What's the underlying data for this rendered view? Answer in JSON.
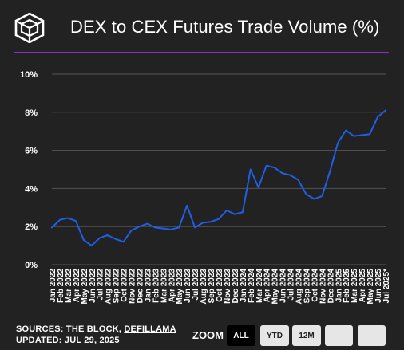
{
  "header": {
    "title": "DEX to CEX Futures Trade Volume (%)",
    "logo_icon": "cube-logo-icon"
  },
  "colors": {
    "background": "#222222",
    "line": "#1f5fe6",
    "grid": "#555555",
    "accent_divider": "#8a2ec8",
    "text": "#ffffff"
  },
  "chart_data": {
    "type": "line",
    "title": "DEX to CEX Futures Trade Volume (%)",
    "xlabel": "",
    "ylabel": "",
    "ylim": [
      0,
      10
    ],
    "y_ticks": [
      0,
      2,
      4,
      6,
      8,
      10
    ],
    "y_tick_labels": [
      "0%",
      "2%",
      "4%",
      "6%",
      "8%",
      "10%"
    ],
    "grid": true,
    "legend": "none",
    "categories": [
      "Jan 2022",
      "Feb 2022",
      "Mar 2022",
      "Apr 2022",
      "May 2022",
      "Jun 2022",
      "Jul 2022",
      "Aug 2022",
      "Sep 2022",
      "Oct 2022",
      "Nov 2022",
      "Dec 2022",
      "Jan 2023",
      "Feb 2023",
      "Mar 2023",
      "Apr 2023",
      "May 2023",
      "Jun 2023",
      "Jul 2023",
      "Aug 2023",
      "Sep 2023",
      "Oct 2023",
      "Nov 2023",
      "Dec 2023",
      "Jan 2024",
      "Feb 2024",
      "Mar 2024",
      "Apr 2024",
      "May 2024",
      "Jun 2024",
      "Jul 2024",
      "Aug 2024",
      "Sep 2024",
      "Oct 2024",
      "Nov 2024",
      "Dec 2024",
      "Jan 2025",
      "Feb 2025",
      "Mar 2025",
      "Apr 2025",
      "May 2025",
      "Jun 2025",
      "Jul 2025*"
    ],
    "series": [
      {
        "values": [
          1.95,
          2.35,
          2.45,
          2.3,
          1.3,
          1.0,
          1.4,
          1.55,
          1.35,
          1.2,
          1.8,
          2.0,
          2.15,
          1.95,
          1.9,
          1.85,
          1.95,
          3.1,
          1.95,
          2.2,
          2.25,
          2.4,
          2.85,
          2.65,
          2.75,
          5.0,
          4.05,
          5.2,
          5.1,
          4.8,
          4.7,
          4.45,
          3.7,
          3.45,
          3.6,
          4.9,
          6.4,
          7.05,
          6.75,
          6.8,
          6.85,
          7.75,
          8.1
        ]
      }
    ]
  },
  "footer": {
    "sources_prefix": "SOURCES: THE BLOCK, ",
    "sources_link": "DEFILLAMA",
    "updated": "UPDATED: JUL 29, 2025"
  },
  "zoom": {
    "label": "ZOOM",
    "buttons": [
      {
        "label": "ALL",
        "active": true
      },
      {
        "label": "YTD",
        "active": false
      },
      {
        "label": "12M",
        "active": false
      },
      {
        "label": "",
        "active": false
      },
      {
        "label": "",
        "active": false
      }
    ]
  }
}
